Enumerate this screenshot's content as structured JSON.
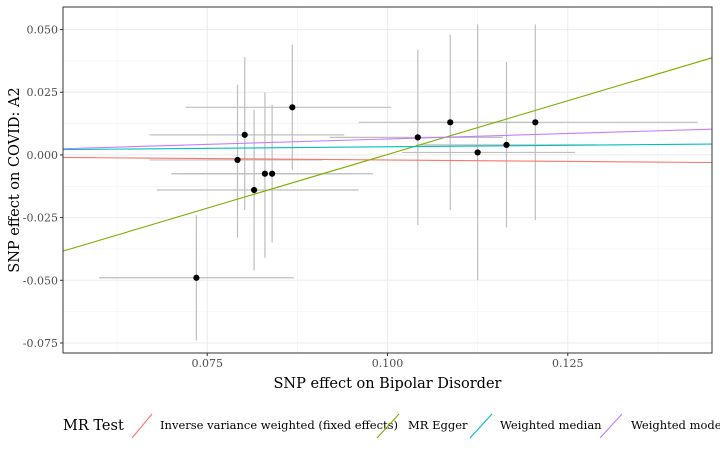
{
  "chart_data": {
    "type": "scatter",
    "title": "",
    "xlabel": "SNP effect on Bipolar Disorder",
    "ylabel": "SNP effect on COVID: A2",
    "xlim": [
      0.055,
      0.145
    ],
    "ylim": [
      -0.079,
      0.059
    ],
    "x_ticks": [
      0.075,
      0.1,
      0.125
    ],
    "x_tick_labels": [
      "0.075",
      "0.100",
      "0.125"
    ],
    "y_ticks": [
      -0.075,
      -0.05,
      -0.025,
      0.0,
      0.025,
      0.05
    ],
    "y_tick_labels": [
      "-0.075",
      "-0.050",
      "-0.025",
      "0.000",
      "0.025",
      "0.050"
    ],
    "grid": true,
    "points": [
      {
        "x": 0.0735,
        "y": -0.049,
        "x_lo": 0.06,
        "x_hi": 0.087,
        "y_lo": -0.074,
        "y_hi": -0.024
      },
      {
        "x": 0.0792,
        "y": -0.002,
        "x_lo": 0.067,
        "x_hi": 0.091,
        "y_lo": -0.033,
        "y_hi": 0.028
      },
      {
        "x": 0.0802,
        "y": 0.008,
        "x_lo": 0.067,
        "x_hi": 0.094,
        "y_lo": -0.022,
        "y_hi": 0.039
      },
      {
        "x": 0.0815,
        "y": -0.014,
        "x_lo": 0.068,
        "x_hi": 0.096,
        "y_lo": -0.046,
        "y_hi": 0.018
      },
      {
        "x": 0.083,
        "y": -0.0075,
        "x_lo": 0.071,
        "x_hi": 0.095,
        "y_lo": -0.041,
        "y_hi": 0.025
      },
      {
        "x": 0.084,
        "y": -0.0075,
        "x_lo": 0.07,
        "x_hi": 0.098,
        "y_lo": -0.035,
        "y_hi": 0.02
      },
      {
        "x": 0.0868,
        "y": 0.019,
        "x_lo": 0.072,
        "x_hi": 0.1005,
        "y_lo": -0.006,
        "y_hi": 0.044
      },
      {
        "x": 0.1042,
        "y": 0.007,
        "x_lo": 0.092,
        "x_hi": 0.116,
        "y_lo": -0.028,
        "y_hi": 0.042
      },
      {
        "x": 0.1087,
        "y": 0.013,
        "x_lo": 0.096,
        "x_hi": 0.121,
        "y_lo": -0.022,
        "y_hi": 0.048
      },
      {
        "x": 0.1125,
        "y": 0.001,
        "x_lo": 0.102,
        "x_hi": 0.126,
        "y_lo": -0.05,
        "y_hi": 0.052
      },
      {
        "x": 0.1165,
        "y": 0.004,
        "x_lo": 0.104,
        "x_hi": 0.129,
        "y_lo": -0.029,
        "y_hi": 0.037
      },
      {
        "x": 0.1205,
        "y": 0.013,
        "x_lo": 0.103,
        "x_hi": 0.143,
        "y_lo": -0.026,
        "y_hi": 0.052
      }
    ],
    "lines": [
      {
        "name": "Inverse variance weighted (fixed effects)",
        "color": "#F8766D",
        "intercept": 0.0002,
        "slope": -0.0222
      },
      {
        "name": "MR Egger",
        "color": "#7CAE00",
        "intercept": -0.0855,
        "slope": 0.8568
      },
      {
        "name": "Weighted median",
        "color": "#00BFC4",
        "intercept": 0.0008,
        "slope": 0.0244
      },
      {
        "name": "Weighted mode",
        "color": "#C77CFF",
        "intercept": -0.0023,
        "slope": 0.0867
      }
    ],
    "legend": {
      "title": "MR Test",
      "position": "bottom"
    }
  }
}
